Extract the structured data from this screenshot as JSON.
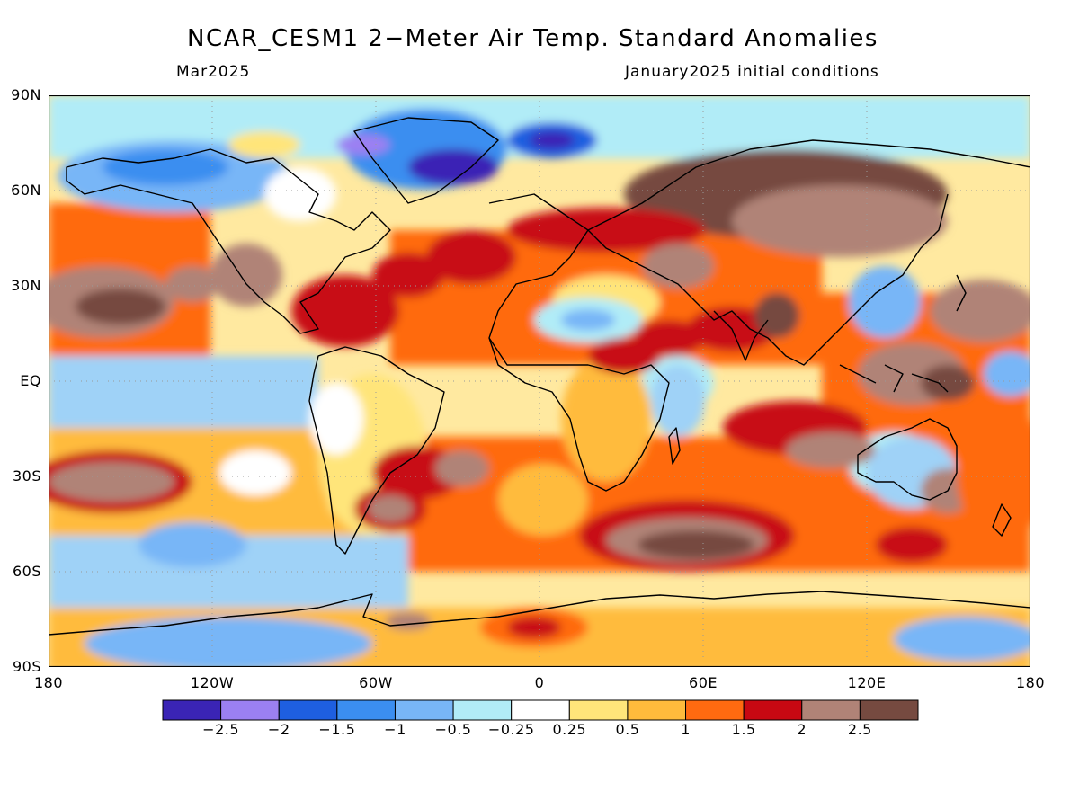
{
  "title": "NCAR_CESM1 2−Meter Air Temp. Standard Anomalies",
  "subtitle_left": "Mar2025",
  "subtitle_right": "January2025 initial conditions",
  "y_axis_labels": [
    "90N",
    "60N",
    "30N",
    "EQ",
    "30S",
    "60S",
    "90S"
  ],
  "x_axis_labels": [
    "180",
    "120W",
    "60W",
    "0",
    "60E",
    "120E",
    "180"
  ],
  "colorbar": {
    "colors": [
      "#3a24b5",
      "#9b80f2",
      "#1e5fe0",
      "#3b8ef0",
      "#78b6f7",
      "#b1ecf7",
      "#ffffff",
      "#ffe57a",
      "#ffbb3c",
      "#ff6a10",
      "#c80812",
      "#b08377",
      "#764a40"
    ],
    "labels": [
      "−2.5",
      "−2",
      "−1.5",
      "−1",
      "−0.5",
      "−0.25",
      "0.25",
      "0.5",
      "1",
      "1.5",
      "2",
      "2.5"
    ]
  }
}
